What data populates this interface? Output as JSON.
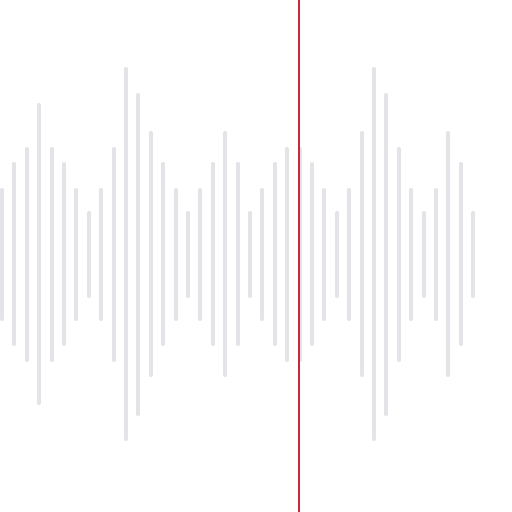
{
  "colors": {
    "background": "#ffffff",
    "bar": "#e3e3e8",
    "playhead": "#c8283a"
  },
  "waveform": {
    "levels": [
      0.26,
      0.36,
      0.42,
      0.59,
      0.42,
      0.36,
      0.26,
      0.17,
      0.26,
      0.42,
      0.73,
      0.63,
      0.48,
      0.36,
      0.26,
      0.17,
      0.26,
      0.36,
      0.48,
      0.36,
      0.17,
      0.26,
      0.36,
      0.42,
      0.42,
      0.36,
      0.26,
      0.17,
      0.26,
      0.48,
      0.73,
      0.63,
      0.42,
      0.26,
      0.17,
      0.26,
      0.48,
      0.36,
      0.17
    ],
    "playhead_position": 0.583
  }
}
